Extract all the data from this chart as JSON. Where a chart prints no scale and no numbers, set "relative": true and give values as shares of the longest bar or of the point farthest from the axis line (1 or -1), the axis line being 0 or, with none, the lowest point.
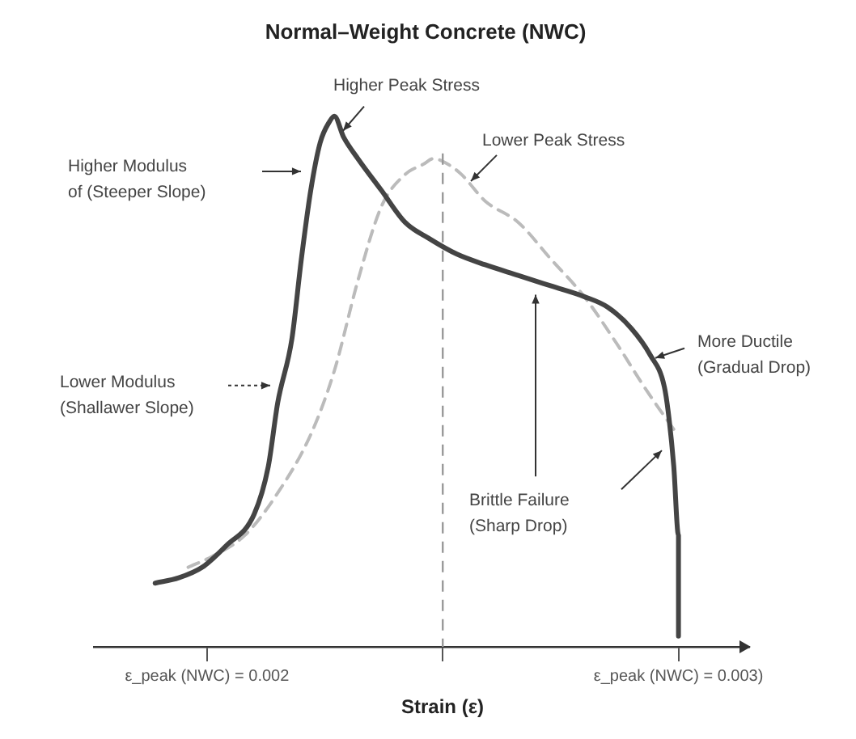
{
  "chart_data": {
    "type": "line",
    "title": "Normal–Weight Concrete (NWC)",
    "xlabel": "Strain (ε)",
    "relative": true,
    "legend": false,
    "grid": false,
    "marker": "none",
    "xlim": [
      0.00176,
      0.00315
    ],
    "xticks": [
      {
        "value": 0.002,
        "label": "ε_peak (NWC) = 0.002"
      },
      {
        "value": 0.0025,
        "label": null
      },
      {
        "value": 0.003,
        "label": "ε_peak (NWC) = 0.003)"
      }
    ],
    "series": [
      {
        "color": "#444444",
        "line_style": "solid",
        "x": [
          0.00189,
          0.00194,
          0.00199,
          0.00204,
          0.0021,
          0.00213,
          0.00215,
          0.00218,
          0.0022,
          0.00222,
          0.00224,
          0.00226,
          0.00227,
          0.00229,
          0.00232,
          0.00237,
          0.00242,
          0.00247,
          0.00253,
          0.00259,
          0.00266,
          0.00273,
          0.0028,
          0.00285,
          0.0029,
          0.00294,
          0.00297,
          0.00298,
          0.00299,
          0.003,
          0.003,
          0.003
        ],
        "values": [
          0.12,
          0.13,
          0.15,
          0.19,
          0.25,
          0.34,
          0.46,
          0.58,
          0.73,
          0.86,
          0.95,
          0.99,
          1,
          0.96,
          0.92,
          0.86,
          0.8,
          0.77,
          0.74,
          0.72,
          0.7,
          0.68,
          0.66,
          0.64,
          0.6,
          0.55,
          0.49,
          0.43,
          0.34,
          0.21,
          0.09,
          0.02
        ]
      },
      {
        "color": "#bbbbbb",
        "line_style": "dashed",
        "x": [
          0.00196,
          0.00201,
          0.00208,
          0.00215,
          0.00222,
          0.00227,
          0.00232,
          0.00237,
          0.00242,
          0.00246,
          0.00248,
          0.00251,
          0.00254,
          0.00259,
          0.00266,
          0.00273,
          0.0028,
          0.00287,
          0.00292,
          0.00295,
          0.00299
        ],
        "values": [
          0.15,
          0.17,
          0.21,
          0.29,
          0.4,
          0.52,
          0.69,
          0.83,
          0.89,
          0.91,
          0.92,
          0.91,
          0.89,
          0.84,
          0.8,
          0.73,
          0.66,
          0.57,
          0.5,
          0.46,
          0.41
        ]
      }
    ],
    "ref_lines": [
      {
        "axis": "x",
        "value": 0.0025,
        "label": null,
        "color": "#999999",
        "line_style": "dashed"
      }
    ],
    "annotations": [
      "Higher Peak Stress",
      "Lower Peak Stress",
      "Higher Modulus of (Steeper Slope)",
      "Lower Modulus (Shallawer Slope)",
      "More Ductile (Gradual Drop)",
      "Brittle Failure (Sharp Drop)"
    ]
  }
}
